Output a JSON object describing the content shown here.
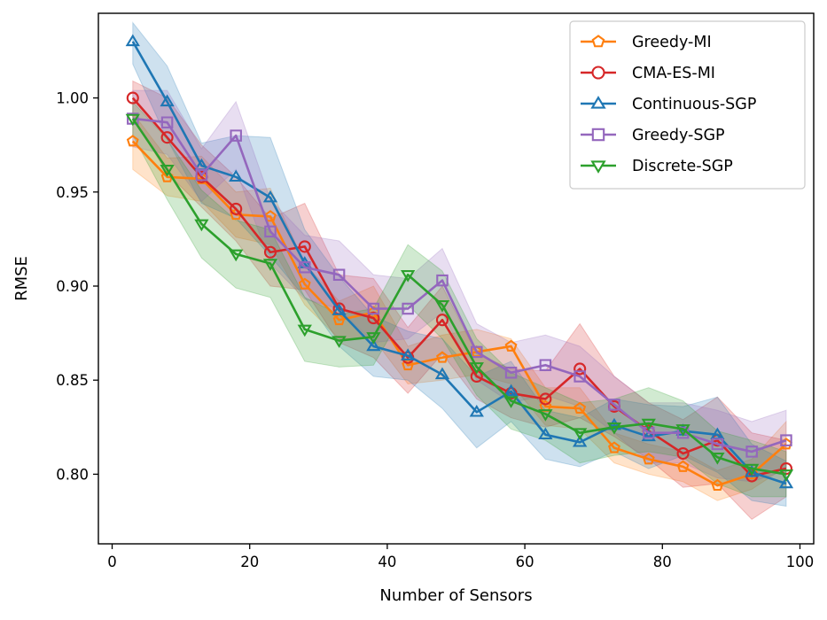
{
  "chart_data": {
    "type": "line",
    "title": "",
    "xlabel": "Number of Sensors",
    "ylabel": "RMSE",
    "xlim": [
      -2,
      102
    ],
    "ylim": [
      0.763,
      1.045
    ],
    "xticks": [
      0,
      20,
      40,
      60,
      80,
      100
    ],
    "xtick_labels": [
      "0",
      "20",
      "40",
      "60",
      "80",
      "100"
    ],
    "yticks": [
      0.8,
      0.85,
      0.9,
      0.95,
      1.0
    ],
    "ytick_labels": [
      "0.80",
      "0.85",
      "0.90",
      "0.95",
      "1.00"
    ],
    "grid": false,
    "legend_position": "top-right",
    "x": [
      3,
      8,
      13,
      18,
      23,
      28,
      33,
      38,
      43,
      48,
      53,
      58,
      63,
      68,
      73,
      78,
      83,
      88,
      93,
      98
    ],
    "series": [
      {
        "name": "Greedy-MI",
        "color": "#ff7f0e",
        "marker": "pentagon",
        "values": [
          0.977,
          0.958,
          0.957,
          0.938,
          0.937,
          0.901,
          0.882,
          0.886,
          0.858,
          0.862,
          0.865,
          0.868,
          0.836,
          0.835,
          0.814,
          0.808,
          0.804,
          0.794,
          0.8,
          0.816
        ],
        "lower": [
          0.962,
          0.948,
          0.945,
          0.926,
          0.922,
          0.89,
          0.872,
          0.872,
          0.848,
          0.85,
          0.853,
          0.848,
          0.826,
          0.824,
          0.806,
          0.8,
          0.796,
          0.786,
          0.792,
          0.804
        ],
        "upper": [
          0.992,
          0.968,
          0.969,
          0.95,
          0.952,
          0.912,
          0.892,
          0.9,
          0.868,
          0.874,
          0.877,
          0.872,
          0.846,
          0.846,
          0.822,
          0.816,
          0.812,
          0.802,
          0.808,
          0.828
        ]
      },
      {
        "name": "CMA-ES-MI",
        "color": "#d62728",
        "marker": "circle",
        "values": [
          1.0,
          0.979,
          0.958,
          0.941,
          0.918,
          0.921,
          0.888,
          0.883,
          0.862,
          0.882,
          0.852,
          0.843,
          0.84,
          0.856,
          0.836,
          0.823,
          0.811,
          0.818,
          0.799,
          0.803
        ],
        "lower": [
          0.99,
          0.96,
          0.942,
          0.924,
          0.9,
          0.898,
          0.87,
          0.862,
          0.843,
          0.864,
          0.84,
          0.83,
          0.825,
          0.83,
          0.82,
          0.808,
          0.793,
          0.795,
          0.776,
          0.788
        ],
        "upper": [
          1.009,
          1.0,
          0.975,
          0.958,
          0.936,
          0.944,
          0.906,
          0.904,
          0.878,
          0.9,
          0.864,
          0.856,
          0.855,
          0.88,
          0.852,
          0.838,
          0.829,
          0.841,
          0.822,
          0.818
        ]
      },
      {
        "name": "Continuous-SGP",
        "color": "#1f77b4",
        "marker": "triangle-up",
        "values": [
          1.03,
          0.998,
          0.964,
          0.958,
          0.947,
          0.912,
          0.887,
          0.868,
          0.863,
          0.853,
          0.833,
          0.844,
          0.821,
          0.817,
          0.826,
          0.82,
          0.823,
          0.821,
          0.801,
          0.795
        ],
        "lower": [
          1.018,
          0.978,
          0.944,
          0.936,
          0.916,
          0.894,
          0.868,
          0.852,
          0.85,
          0.835,
          0.814,
          0.828,
          0.808,
          0.804,
          0.812,
          0.803,
          0.81,
          0.801,
          0.786,
          0.783
        ],
        "upper": [
          1.04,
          1.017,
          0.976,
          0.98,
          0.979,
          0.93,
          0.905,
          0.884,
          0.876,
          0.872,
          0.852,
          0.86,
          0.834,
          0.83,
          0.84,
          0.837,
          0.836,
          0.841,
          0.816,
          0.807
        ]
      },
      {
        "name": "Greedy-SGP",
        "color": "#9467bd",
        "marker": "square",
        "values": [
          0.989,
          0.987,
          0.959,
          0.98,
          0.929,
          0.91,
          0.906,
          0.888,
          0.888,
          0.903,
          0.865,
          0.854,
          0.858,
          0.852,
          0.837,
          0.822,
          0.822,
          0.816,
          0.812,
          0.818
        ],
        "lower": [
          0.974,
          0.97,
          0.945,
          0.962,
          0.912,
          0.893,
          0.888,
          0.87,
          0.872,
          0.886,
          0.85,
          0.838,
          0.842,
          0.836,
          0.822,
          0.806,
          0.806,
          0.798,
          0.796,
          0.802
        ],
        "upper": [
          1.004,
          1.004,
          0.973,
          0.998,
          0.946,
          0.927,
          0.924,
          0.906,
          0.904,
          0.92,
          0.88,
          0.87,
          0.874,
          0.868,
          0.852,
          0.838,
          0.838,
          0.834,
          0.828,
          0.834
        ]
      },
      {
        "name": "Discrete-SGP",
        "color": "#2ca02c",
        "marker": "triangle-down",
        "values": [
          0.989,
          0.962,
          0.933,
          0.917,
          0.912,
          0.877,
          0.871,
          0.873,
          0.906,
          0.89,
          0.857,
          0.839,
          0.832,
          0.822,
          0.825,
          0.827,
          0.824,
          0.809,
          0.803,
          0.8
        ],
        "lower": [
          0.98,
          0.946,
          0.915,
          0.899,
          0.894,
          0.86,
          0.857,
          0.858,
          0.89,
          0.872,
          0.842,
          0.824,
          0.818,
          0.806,
          0.81,
          0.812,
          0.809,
          0.795,
          0.788,
          0.788
        ],
        "upper": [
          0.998,
          0.978,
          0.951,
          0.935,
          0.93,
          0.894,
          0.885,
          0.888,
          0.922,
          0.908,
          0.872,
          0.854,
          0.846,
          0.838,
          0.84,
          0.846,
          0.839,
          0.823,
          0.818,
          0.812
        ]
      }
    ]
  }
}
